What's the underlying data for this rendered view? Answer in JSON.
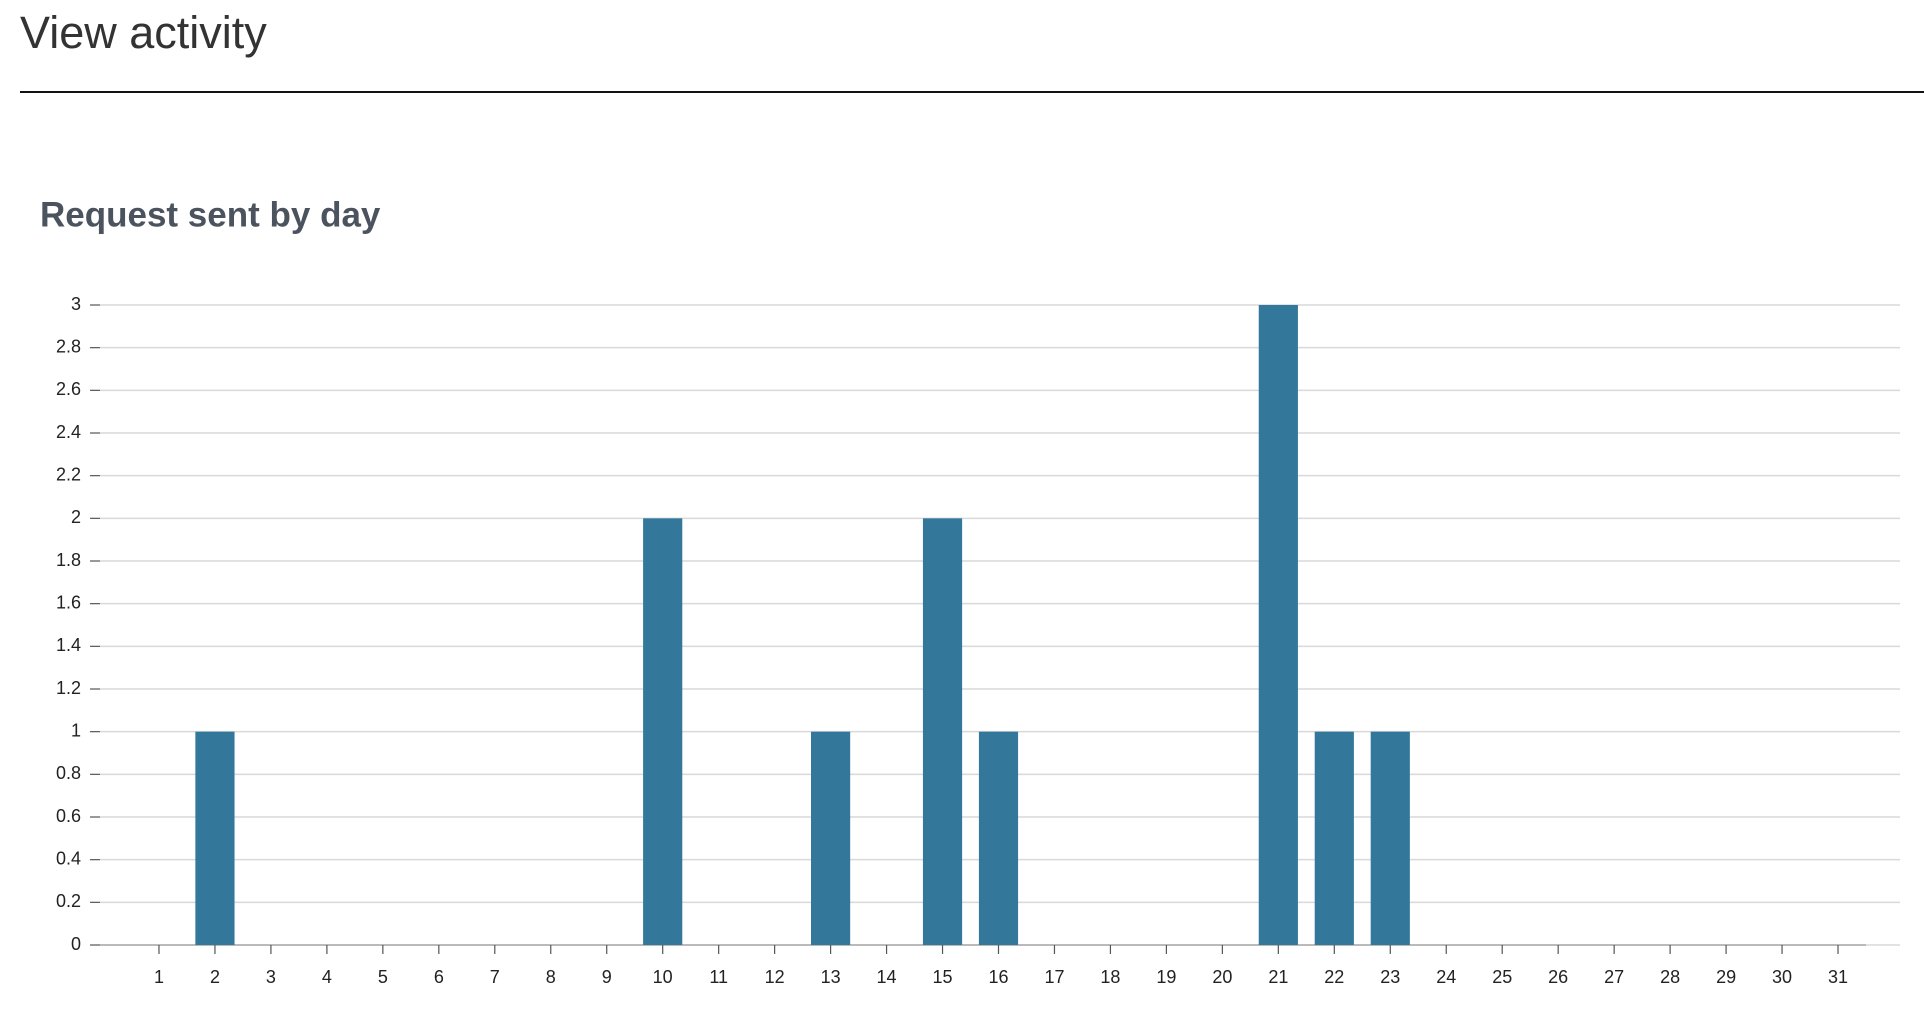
{
  "header": {
    "title": "View activity"
  },
  "chart_data": {
    "type": "bar",
    "title": "Request sent by day",
    "categories": [
      "1",
      "2",
      "3",
      "4",
      "5",
      "6",
      "7",
      "8",
      "9",
      "10",
      "11",
      "12",
      "13",
      "14",
      "15",
      "16",
      "17",
      "18",
      "19",
      "20",
      "21",
      "22",
      "23",
      "24",
      "25",
      "26",
      "27",
      "28",
      "29",
      "30",
      "31"
    ],
    "values": [
      0,
      1,
      0,
      0,
      0,
      0,
      0,
      0,
      0,
      2,
      0,
      0,
      1,
      0,
      2,
      1,
      0,
      0,
      0,
      0,
      3,
      1,
      1,
      0,
      0,
      0,
      0,
      0,
      0,
      0,
      0
    ],
    "color": "#33779b",
    "ylim": [
      0,
      3
    ],
    "yticks": [
      0,
      0.2,
      0.4,
      0.6,
      0.8,
      1,
      1.2,
      1.4,
      1.6,
      1.8,
      2,
      2.2,
      2.4,
      2.6,
      2.8,
      3
    ],
    "grid": true
  }
}
